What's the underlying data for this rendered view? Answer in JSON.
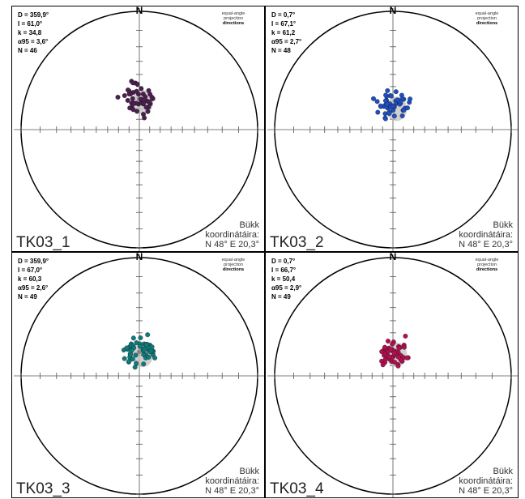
{
  "legend": {
    "line1": "equal-angle",
    "line2": "projection",
    "line3": "directions"
  },
  "north_label": "N",
  "coord_title": "Bükk",
  "coord_line2": "koordinátáira:",
  "coord_line3": "N 48° E 20,3°",
  "colors": {
    "frame": "#000000",
    "ticks": "#555555",
    "cone": "#c0c0c0"
  },
  "panels": [
    {
      "label": "TK03_1",
      "stats": [
        "D = 359,9°",
        "I = 61,0°",
        "k = 34,8",
        "α95 = 3,6°",
        "N = 46"
      ],
      "mean": {
        "dec": 359.9,
        "inc": 61.0
      },
      "dot_color": "#4b1f4f",
      "n": 46,
      "seed": 11,
      "spread": 14
    },
    {
      "label": "TK03_2",
      "stats": [
        "D = 0,7°",
        "I = 67,1°",
        "k = 61,2",
        "α95 = 2,7°",
        "N = 48"
      ],
      "mean": {
        "dec": 0.7,
        "inc": 67.1
      },
      "dot_color": "#1f4fbf",
      "n": 48,
      "seed": 23,
      "spread": 12
    },
    {
      "label": "TK03_3",
      "stats": [
        "D = 359,9°",
        "I = 67,0°",
        "k = 60,3",
        "α95 = 2,6°",
        "N = 49"
      ],
      "mean": {
        "dec": 359.9,
        "inc": 67.0
      },
      "dot_color": "#0f7b7b",
      "n": 49,
      "seed": 37,
      "spread": 12
    },
    {
      "label": "TK03_4",
      "stats": [
        "D = 0,7°",
        "I = 66,7°",
        "k = 50,4",
        "α95 = 2,9°",
        "N = 49"
      ],
      "mean": {
        "dec": 0.7,
        "inc": 66.7
      },
      "dot_color": "#b0104f",
      "n": 49,
      "seed": 51,
      "spread": 13
    }
  ]
}
